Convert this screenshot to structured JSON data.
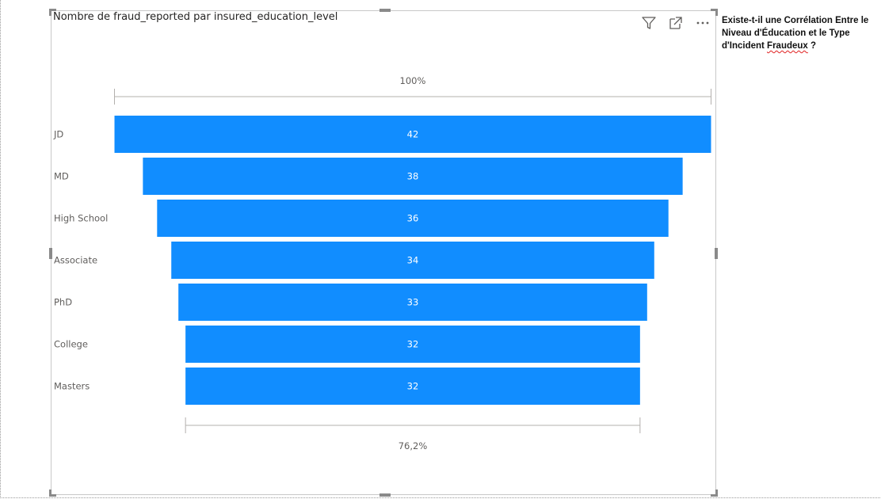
{
  "visual": {
    "title": "Nombre de fraud_reported par insured_education_level",
    "toolbar": [
      {
        "name": "filter-icon"
      },
      {
        "name": "focus-mode-icon"
      },
      {
        "name": "more-options-icon"
      }
    ]
  },
  "note": {
    "text_before": "Existe-t-il une Corrélation Entre le Niveau d'Éducation et le Type d'Incident ",
    "squiggled_word": "Fraudeux",
    "text_after": " ?"
  },
  "chart_data": {
    "type": "funnel",
    "categories": [
      "JD",
      "MD",
      "High School",
      "Associate",
      "PhD",
      "College",
      "Masters"
    ],
    "values": [
      42,
      38,
      36,
      34,
      33,
      32,
      32
    ],
    "top_percent_label": "100%",
    "bottom_percent_label": "76,2%",
    "bar_color": "#118dff",
    "label_color": "#ffffff"
  }
}
